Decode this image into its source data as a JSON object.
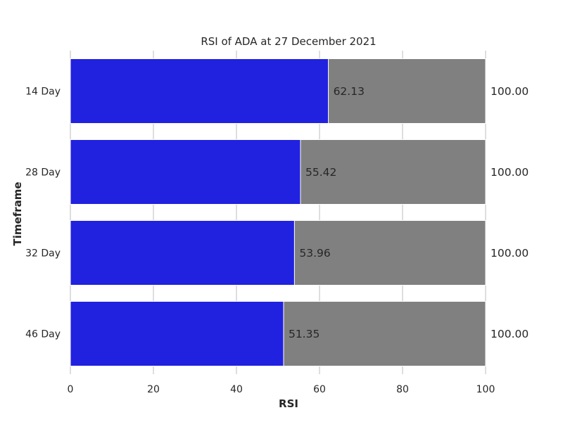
{
  "chart_data": {
    "type": "bar",
    "orientation": "horizontal",
    "stacked": false,
    "title": "RSI of ADA at 27 December 2021",
    "xlabel": "RSI",
    "ylabel": "Timeframe",
    "categories": [
      "14 Day",
      "28 Day",
      "32 Day",
      "46 Day"
    ],
    "series": [
      {
        "values": [
          100.0,
          100.0,
          100.0,
          100.0
        ],
        "value_labels": [
          "100.00",
          "100.00",
          "100.00",
          "100.00"
        ],
        "color": "#808080"
      },
      {
        "values": [
          62.13,
          55.42,
          53.96,
          51.35
        ],
        "value_labels": [
          "62.13",
          "55.42",
          "53.96",
          "51.35"
        ],
        "color": "#2121e0"
      }
    ],
    "xlim": [
      0,
      100
    ],
    "xticks": [
      0,
      20,
      40,
      60,
      80,
      100
    ],
    "xtick_labels": [
      "0",
      "20",
      "40",
      "60",
      "80",
      "100"
    ],
    "grid": "vertical",
    "grid_color": "#cccccc"
  }
}
